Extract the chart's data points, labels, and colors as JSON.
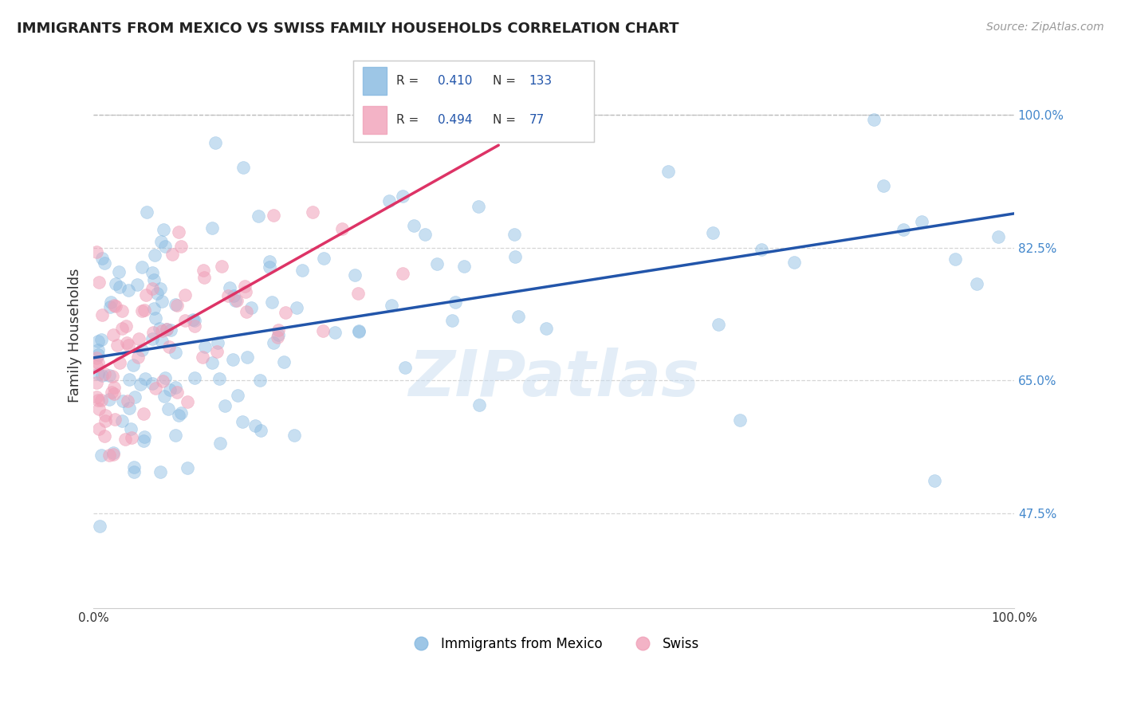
{
  "title": "IMMIGRANTS FROM MEXICO VS SWISS FAMILY HOUSEHOLDS CORRELATION CHART",
  "source": "Source: ZipAtlas.com",
  "ylabel": "Family Households",
  "watermark": "ZIPatlas",
  "xlim": [
    0.0,
    100.0
  ],
  "ylim": [
    35.0,
    107.0
  ],
  "yticks": [
    47.5,
    65.0,
    82.5,
    100.0
  ],
  "ytick_labels": [
    "47.5%",
    "65.0%",
    "82.5%",
    "100.0%"
  ],
  "blue_R": 0.41,
  "blue_N": 133,
  "pink_R": 0.494,
  "pink_N": 77,
  "blue_color": "#85b8e0",
  "pink_color": "#f0a0b8",
  "blue_line_color": "#2255aa",
  "pink_line_color": "#dd3366",
  "legend_blue_label": "Immigrants from Mexico",
  "legend_pink_label": "Swiss",
  "background_color": "#ffffff",
  "grid_color": "#cccccc",
  "title_color": "#222222",
  "ytick_color": "#4488cc",
  "xtick_color": "#333333",
  "blue_trend_x0": 0.0,
  "blue_trend_y0": 68.0,
  "blue_trend_x1": 100.0,
  "blue_trend_y1": 87.0,
  "pink_trend_x0": 0.0,
  "pink_trend_y0": 66.0,
  "pink_trend_x1": 44.0,
  "pink_trend_y1": 96.0
}
